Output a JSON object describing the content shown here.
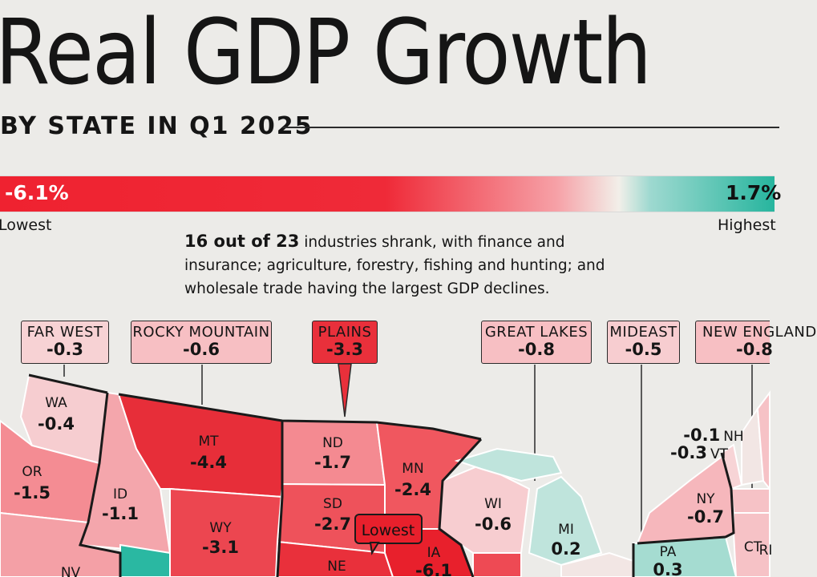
{
  "title": "Real GDP Growth",
  "subtitle": "BY STATE IN Q1 2025",
  "legend": {
    "min_value": "-6.1%",
    "min_label": "Lowest",
    "max_value": "1.7%",
    "max_label": "Highest"
  },
  "note": {
    "lead": "16 out of 23",
    "text": " industries shrank, with finance and insurance; agriculture, forestry, fishing and hunting; and wholesale trade having the largest GDP declines."
  },
  "regions": [
    {
      "name": "FAR WEST",
      "value": "-0.3",
      "color": "#f7d2d4"
    },
    {
      "name": "ROCKY MOUNTAIN",
      "value": "-0.6",
      "color": "#f7bfc3"
    },
    {
      "name": "PLAINS",
      "value": "-3.3",
      "color": "#e9303b"
    },
    {
      "name": "GREAT LAKES",
      "value": "-0.8",
      "color": "#f7bfc3"
    },
    {
      "name": "MIDEAST",
      "value": "-0.5",
      "color": "#f7cdd0"
    },
    {
      "name": "NEW ENGLAND",
      "value": "-0.8",
      "color": "#f7bfc3"
    }
  ],
  "states": [
    {
      "abbr": "WA",
      "value": "-0.4",
      "color": "#f6cdd0"
    },
    {
      "abbr": "OR",
      "value": "-1.5",
      "color": "#f48c93"
    },
    {
      "abbr": "ID",
      "value": "-1.1",
      "color": "#f4a6ac"
    },
    {
      "abbr": "MT",
      "value": "-4.4",
      "color": "#e72e39"
    },
    {
      "abbr": "WY",
      "value": "-3.1",
      "color": "#ec4650"
    },
    {
      "abbr": "NV",
      "value": "",
      "color": "#f4a0a6"
    },
    {
      "abbr": "ND",
      "value": "-1.7",
      "color": "#f48a91"
    },
    {
      "abbr": "SD",
      "value": "-2.7",
      "color": "#ee525b"
    },
    {
      "abbr": "NE",
      "value": "",
      "color": "#e9303b"
    },
    {
      "abbr": "MN",
      "value": "-2.4",
      "color": "#f0575f"
    },
    {
      "abbr": "IA",
      "value": "-6.1",
      "color": "#e8202c"
    },
    {
      "abbr": "WI",
      "value": "-0.6",
      "color": "#f7cdd0"
    },
    {
      "abbr": "MI",
      "value": "0.2",
      "color": "#bfe4dc"
    },
    {
      "abbr": "PA",
      "value": "0.3",
      "color": "#a5dcd1"
    },
    {
      "abbr": "NY",
      "value": "-0.7",
      "color": "#f6b7bc"
    },
    {
      "abbr": "VT",
      "value": "-0.3",
      "color": "#f7d4d6"
    },
    {
      "abbr": "NH",
      "value": "-0.1",
      "color": "#f2e6e4"
    },
    {
      "abbr": "CT",
      "value": "",
      "color": "#f6c2c6"
    },
    {
      "abbr": "RI",
      "value": "",
      "color": "#f6c2c6"
    }
  ],
  "callout": "Lowest"
}
